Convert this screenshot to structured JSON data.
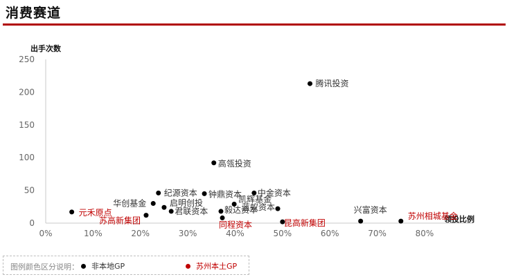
{
  "page": {
    "title": "消费赛道"
  },
  "colors": {
    "accent": "#b00000",
    "nonlocal": "#000000",
    "local": "#c00000"
  },
  "legend": {
    "label": "图例颜色区分说明：",
    "items": [
      {
        "name": "非本地GP",
        "color": "#000000"
      },
      {
        "name": "苏州本土GP",
        "color": "#c00000"
      }
    ]
  },
  "chart_data": {
    "type": "scatter",
    "title": "",
    "xlabel": "领投比例",
    "ylabel": "出手次数",
    "xlim": [
      0,
      0.8
    ],
    "ylim": [
      0,
      250
    ],
    "x_ticks": [
      "0%",
      "10%",
      "20%",
      "30%",
      "40%",
      "50%",
      "60%",
      "70%",
      "80%"
    ],
    "y_ticks": [
      "0",
      "50",
      "100",
      "150",
      "200",
      "250"
    ],
    "grid": false,
    "points": [
      {
        "label": "腾讯投资",
        "x": 0.558,
        "y": 213,
        "group": "非本地GP"
      },
      {
        "label": "高瓴投资",
        "x": 0.355,
        "y": 92,
        "group": "非本地GP"
      },
      {
        "label": "纪源资本",
        "x": 0.238,
        "y": 46,
        "group": "非本地GP"
      },
      {
        "label": "钟鼎资本",
        "x": 0.335,
        "y": 45,
        "group": "非本地GP"
      },
      {
        "label": "中金资本",
        "x": 0.44,
        "y": 46,
        "group": "非本地GP"
      },
      {
        "label": "凯辉基金",
        "x": 0.398,
        "y": 29,
        "group": "非本地GP"
      },
      {
        "label": "华创基金",
        "x": 0.227,
        "y": 30,
        "group": "非本地GP"
      },
      {
        "label": "启明创投",
        "x": 0.25,
        "y": 24,
        "group": "非本地GP"
      },
      {
        "label": "君联资本",
        "x": 0.265,
        "y": 18,
        "group": "非本地GP"
      },
      {
        "label": "毅达资本",
        "x": 0.37,
        "y": 18,
        "group": "非本地GP"
      },
      {
        "label": "蓝蚁资本",
        "x": 0.49,
        "y": 22,
        "group": "非本地GP"
      },
      {
        "label": "兴富资本",
        "x": 0.665,
        "y": 3,
        "group": "非本地GP"
      },
      {
        "label": "元禾原点",
        "x": 0.055,
        "y": 17,
        "group": "苏州本土GP"
      },
      {
        "label": "苏高新集团",
        "x": 0.212,
        "y": 12,
        "group": "苏州本土GP"
      },
      {
        "label": "同程资本",
        "x": 0.373,
        "y": 8,
        "group": "苏州本土GP"
      },
      {
        "label": "昆高新集团",
        "x": 0.5,
        "y": 2,
        "group": "苏州本土GP"
      },
      {
        "label": "苏州相城基金",
        "x": 0.75,
        "y": 3,
        "group": "苏州本土GP"
      }
    ]
  }
}
